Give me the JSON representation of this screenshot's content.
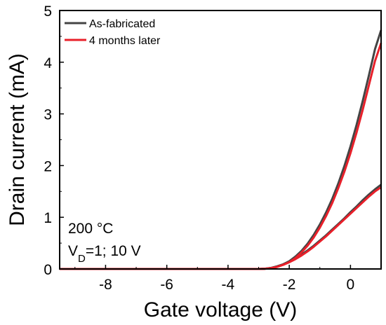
{
  "chart_data": {
    "type": "line",
    "xlabel": "Gate voltage (V)",
    "ylabel": "Drain current (mA)",
    "xlim": [
      -9.5,
      1.0
    ],
    "ylim": [
      0,
      5
    ],
    "xticks": [
      -8,
      -6,
      -4,
      -2,
      0
    ],
    "yticks": [
      0,
      1,
      2,
      3,
      4,
      5
    ],
    "grid": false,
    "legend_position": "top-left",
    "annotation": {
      "line1": "200 °C",
      "line2_prefix": "V",
      "line2_sub": "D",
      "line2_suffix": "=1; 10 V"
    },
    "series": [
      {
        "name": "As-fabricated",
        "color": "#444444",
        "curves": [
          {
            "label": "VD=10 V",
            "x": [
              -9.5,
              -3.0,
              -2.8,
              -2.6,
              -2.4,
              -2.2,
              -2.0,
              -1.8,
              -1.6,
              -1.4,
              -1.2,
              -1.0,
              -0.8,
              -0.6,
              -0.4,
              -0.2,
              0.0,
              0.2,
              0.4,
              0.6,
              0.8,
              1.0
            ],
            "y": [
              0,
              0,
              0.005,
              0.02,
              0.05,
              0.09,
              0.15,
              0.24,
              0.35,
              0.49,
              0.66,
              0.86,
              1.09,
              1.35,
              1.65,
              1.99,
              2.37,
              2.79,
              3.25,
              3.74,
              4.25,
              4.62
            ]
          },
          {
            "label": "VD=1 V",
            "x": [
              -9.5,
              -3.0,
              -2.8,
              -2.6,
              -2.4,
              -2.2,
              -2.0,
              -1.8,
              -1.6,
              -1.4,
              -1.2,
              -1.0,
              -0.8,
              -0.6,
              -0.4,
              -0.2,
              0.0,
              0.2,
              0.4,
              0.6,
              0.8,
              1.0
            ],
            "y": [
              0,
              0,
              0.005,
              0.02,
              0.05,
              0.09,
              0.14,
              0.2,
              0.28,
              0.36,
              0.45,
              0.55,
              0.65,
              0.76,
              0.87,
              0.98,
              1.1,
              1.21,
              1.33,
              1.44,
              1.54,
              1.63
            ]
          }
        ]
      },
      {
        "name": "4 months later",
        "color": "#e8202a",
        "curves": [
          {
            "label": "VD=10 V",
            "x": [
              -9.5,
              -3.0,
              -2.8,
              -2.6,
              -2.4,
              -2.2,
              -2.0,
              -1.8,
              -1.6,
              -1.4,
              -1.2,
              -1.0,
              -0.8,
              -0.6,
              -0.4,
              -0.2,
              0.0,
              0.2,
              0.4,
              0.6,
              0.8,
              1.0
            ],
            "y": [
              0,
              0,
              0.004,
              0.015,
              0.04,
              0.08,
              0.13,
              0.21,
              0.32,
              0.45,
              0.61,
              0.8,
              1.02,
              1.27,
              1.56,
              1.88,
              2.24,
              2.64,
              3.08,
              3.55,
              4.02,
              4.37
            ]
          },
          {
            "label": "VD=1 V",
            "x": [
              -9.5,
              -3.0,
              -2.8,
              -2.6,
              -2.4,
              -2.2,
              -2.0,
              -1.8,
              -1.6,
              -1.4,
              -1.2,
              -1.0,
              -0.8,
              -0.6,
              -0.4,
              -0.2,
              0.0,
              0.2,
              0.4,
              0.6,
              0.8,
              1.0
            ],
            "y": [
              0,
              0,
              0.004,
              0.015,
              0.04,
              0.08,
              0.13,
              0.19,
              0.26,
              0.34,
              0.43,
              0.53,
              0.63,
              0.74,
              0.85,
              0.96,
              1.07,
              1.18,
              1.29,
              1.4,
              1.5,
              1.58
            ]
          }
        ]
      }
    ]
  }
}
